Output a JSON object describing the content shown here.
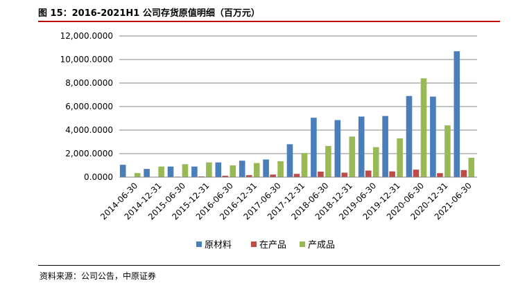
{
  "header": {
    "title": "图 15：2016-2021H1 公司存货原值明细（百万元）"
  },
  "footer": {
    "source": "资料来源：公司公告，中原证券"
  },
  "chart_data": {
    "type": "bar",
    "title": "",
    "xlabel": "",
    "ylabel": "",
    "ylim": [
      0,
      12000
    ],
    "yticks": [
      "0.0000",
      "2,000.0000",
      "4,000.0000",
      "6,000.0000",
      "8,000.0000",
      "10,000.0000",
      "12,000.0000"
    ],
    "ytick_values": [
      0,
      2000,
      4000,
      6000,
      8000,
      10000,
      12000
    ],
    "grid": true,
    "legend_position": "bottom",
    "categories": [
      "2014-06-30",
      "2014-12-31",
      "2015-06-30",
      "2015-12-31",
      "2016-06-30",
      "2016-12-31",
      "2017-06-30",
      "2017-12-31",
      "2018-06-30",
      "2018-12-31",
      "2019-06-30",
      "2019-12-31",
      "2020-06-30",
      "2020-12-31",
      "2021-06-30"
    ],
    "series": [
      {
        "name": "原材料",
        "color": "#4a7ebb",
        "values": [
          1050,
          700,
          900,
          900,
          1250,
          1400,
          1500,
          2800,
          5050,
          4850,
          5150,
          5200,
          6900,
          6850,
          10700
        ]
      },
      {
        "name": "在产品",
        "color": "#be4b48",
        "values": [
          20,
          30,
          40,
          60,
          120,
          170,
          220,
          280,
          470,
          380,
          560,
          490,
          640,
          340,
          600
        ]
      },
      {
        "name": "产成品",
        "color": "#98b954",
        "values": [
          350,
          900,
          1100,
          1250,
          1000,
          1200,
          1350,
          2050,
          2650,
          3450,
          2550,
          3300,
          8400,
          4400,
          1650
        ]
      }
    ]
  }
}
